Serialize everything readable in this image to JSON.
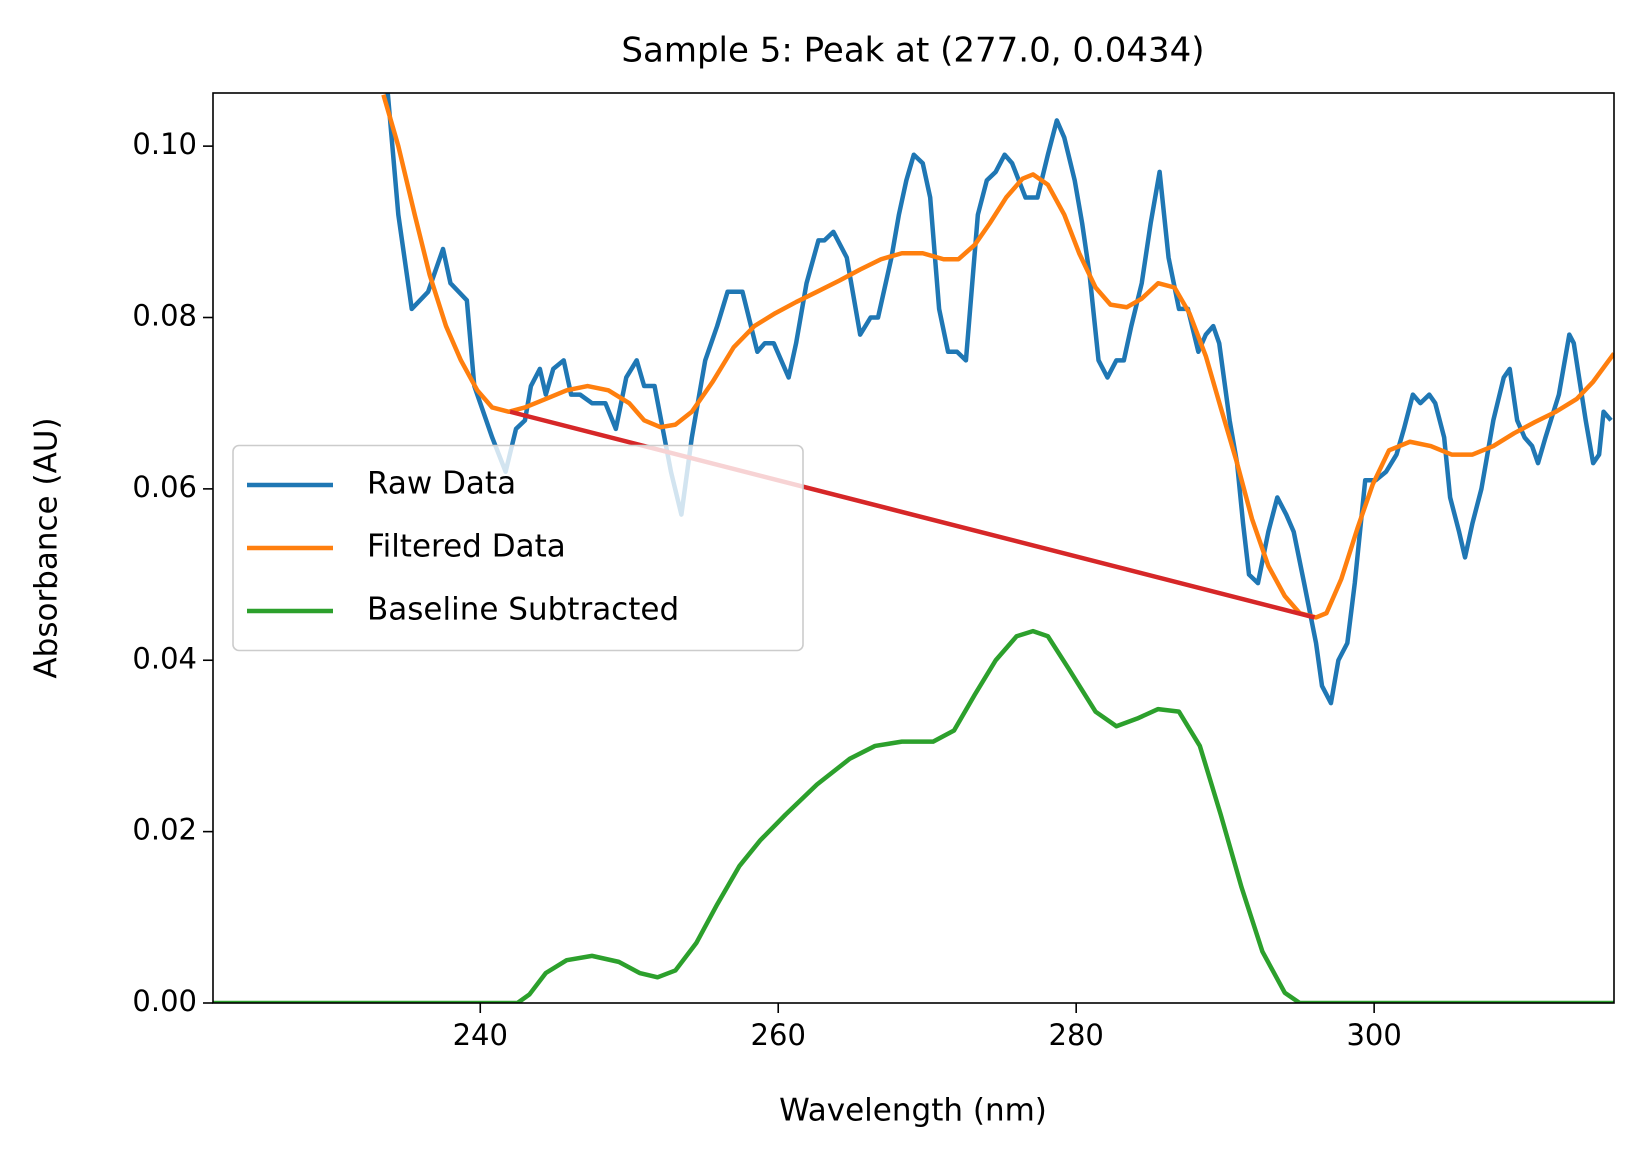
{
  "chart_data": {
    "type": "line",
    "title": "Sample 5: Peak at (277.0, 0.0434)",
    "x_label": "Wavelength (nm)",
    "y_label": "Absorbance (AU)",
    "xlim": [
      222.06,
      316.1
    ],
    "ylim": [
      0,
      0.1062
    ],
    "xticks": [
      240,
      260,
      280,
      300
    ],
    "yticks": [
      {
        "value": 0,
        "label": "0.00"
      },
      0.02,
      0.04,
      0.06,
      0.08,
      {
        "value": 0.1,
        "label": "0.10"
      }
    ],
    "grid": false,
    "legend": "center left",
    "series": [
      {
        "name": "Raw Data",
        "color": "#1f77b4",
        "x": [
          233.2,
          233.8,
          234.5,
          235.4,
          236.5,
          237.5,
          238.0,
          239.1,
          239.6,
          240.8,
          241.7,
          242.4,
          243.0,
          243.4,
          244.0,
          244.4,
          244.9,
          245.6,
          246.1,
          246.7,
          247.5,
          248.4,
          249.1,
          249.8,
          250.5,
          251.0,
          251.7,
          252.8,
          253.5,
          254.2,
          255.1,
          255.9,
          256.6,
          257.6,
          258.6,
          259.1,
          259.7,
          260.7,
          261.2,
          261.9,
          262.7,
          263.1,
          263.7,
          264.6,
          265.5,
          266.2,
          266.7,
          267.6,
          268.1,
          268.6,
          269.1,
          269.7,
          270.2,
          270.8,
          271.4,
          272.0,
          272.6,
          273.4,
          274.0,
          274.6,
          275.2,
          275.7,
          276.6,
          277.4,
          278.1,
          278.7,
          279.2,
          279.9,
          280.4,
          280.9,
          281.5,
          282.1,
          282.7,
          283.2,
          283.7,
          284.4,
          285.0,
          285.6,
          286.2,
          286.9,
          287.5,
          288.2,
          288.7,
          289.2,
          289.6,
          290.3,
          290.8,
          291.2,
          291.6,
          292.2,
          292.9,
          293.5,
          294.1,
          294.6,
          295.3,
          296.1,
          296.5,
          297.1,
          297.6,
          298.2,
          298.7,
          299.4,
          300.1,
          300.8,
          301.5,
          302.0,
          302.6,
          303.1,
          303.7,
          304.1,
          304.7,
          305.1,
          305.7,
          306.1,
          306.6,
          307.2,
          308.0,
          308.7,
          309.1,
          309.6,
          310.1,
          310.6,
          311.0,
          311.5,
          312.4,
          313.1,
          313.4,
          314.2,
          314.7,
          315.1,
          315.4,
          315.9
        ],
        "values": [
          0.112,
          0.106,
          0.092,
          0.081,
          0.083,
          0.088,
          0.084,
          0.082,
          0.072,
          0.066,
          0.062,
          0.067,
          0.068,
          0.072,
          0.074,
          0.071,
          0.074,
          0.075,
          0.071,
          0.071,
          0.07,
          0.07,
          0.067,
          0.073,
          0.075,
          0.072,
          0.072,
          0.062,
          0.057,
          0.066,
          0.075,
          0.079,
          0.083,
          0.083,
          0.076,
          0.077,
          0.077,
          0.073,
          0.077,
          0.084,
          0.089,
          0.089,
          0.09,
          0.087,
          0.078,
          0.08,
          0.08,
          0.087,
          0.092,
          0.096,
          0.099,
          0.098,
          0.094,
          0.081,
          0.076,
          0.076,
          0.075,
          0.092,
          0.096,
          0.097,
          0.099,
          0.098,
          0.094,
          0.094,
          0.099,
          0.103,
          0.101,
          0.096,
          0.091,
          0.085,
          0.075,
          0.073,
          0.075,
          0.075,
          0.079,
          0.084,
          0.091,
          0.097,
          0.087,
          0.081,
          0.081,
          0.076,
          0.078,
          0.079,
          0.077,
          0.068,
          0.063,
          0.056,
          0.05,
          0.049,
          0.055,
          0.059,
          0.057,
          0.055,
          0.049,
          0.042,
          0.037,
          0.035,
          0.04,
          0.042,
          0.049,
          0.061,
          0.061,
          0.062,
          0.064,
          0.067,
          0.071,
          0.07,
          0.071,
          0.07,
          0.066,
          0.059,
          0.055,
          0.052,
          0.056,
          0.06,
          0.068,
          0.073,
          0.074,
          0.068,
          0.066,
          0.065,
          0.063,
          0.066,
          0.071,
          0.078,
          0.077,
          0.068,
          0.063,
          0.064,
          0.069,
          0.068
        ]
      },
      {
        "name": "Filtered Data",
        "color": "#ff7f0e",
        "x": [
          233.5,
          234.5,
          235.6,
          236.6,
          237.7,
          238.7,
          239.8,
          240.8,
          241.9,
          243.0,
          244.4,
          245.8,
          247.2,
          248.6,
          250.0,
          251.0,
          252.1,
          253.1,
          254.2,
          255.6,
          257.0,
          258.4,
          259.8,
          261.2,
          262.6,
          264.1,
          265.5,
          266.9,
          268.3,
          269.7,
          271.1,
          272.1,
          273.2,
          274.2,
          275.3,
          276.4,
          277.1,
          278.1,
          279.2,
          280.2,
          281.3,
          282.3,
          283.4,
          284.4,
          285.5,
          286.6,
          287.6,
          288.7,
          289.7,
          290.8,
          291.8,
          292.9,
          294.0,
          295.0,
          296.1,
          296.8,
          297.8,
          298.9,
          299.9,
          301.0,
          302.4,
          303.8,
          305.2,
          306.6,
          308.0,
          309.4,
          310.8,
          312.2,
          313.6,
          314.7,
          316.1
        ],
        "values": [
          0.106,
          0.1,
          0.092,
          0.085,
          0.079,
          0.075,
          0.0715,
          0.0695,
          0.069,
          0.0695,
          0.0705,
          0.0715,
          0.072,
          0.0715,
          0.07,
          0.068,
          0.0672,
          0.0675,
          0.069,
          0.0725,
          0.0765,
          0.079,
          0.0805,
          0.0818,
          0.083,
          0.0843,
          0.0856,
          0.0868,
          0.0875,
          0.0875,
          0.0868,
          0.0868,
          0.0885,
          0.091,
          0.094,
          0.0962,
          0.0967,
          0.0955,
          0.092,
          0.0875,
          0.0835,
          0.0815,
          0.0812,
          0.0822,
          0.084,
          0.0835,
          0.0805,
          0.0755,
          0.0695,
          0.063,
          0.0565,
          0.051,
          0.0475,
          0.0455,
          0.045,
          0.0455,
          0.0495,
          0.0555,
          0.0605,
          0.0645,
          0.0655,
          0.065,
          0.064,
          0.064,
          0.065,
          0.0665,
          0.0678,
          0.069,
          0.0705,
          0.0725,
          0.0758
        ]
      },
      {
        "name": "Baseline Subtracted",
        "color": "#2ca02c",
        "x": [
          222.06,
          242.5,
          243.3,
          244.4,
          245.8,
          247.5,
          249.3,
          250.7,
          251.9,
          253.1,
          254.5,
          255.9,
          257.4,
          258.8,
          260.5,
          262.6,
          264.8,
          266.5,
          268.3,
          270.4,
          271.8,
          273.2,
          274.6,
          276.0,
          277.1,
          278.1,
          279.5,
          281.3,
          282.7,
          284.1,
          285.5,
          286.9,
          288.3,
          289.7,
          291.1,
          292.5,
          294.0,
          295.0,
          316.1
        ],
        "values": [
          0,
          0,
          0.001,
          0.0035,
          0.005,
          0.0055,
          0.0048,
          0.0035,
          0.003,
          0.0038,
          0.007,
          0.0115,
          0.016,
          0.019,
          0.022,
          0.0255,
          0.0285,
          0.03,
          0.0305,
          0.0305,
          0.0318,
          0.036,
          0.04,
          0.0428,
          0.0434,
          0.0428,
          0.039,
          0.034,
          0.0323,
          0.0332,
          0.0343,
          0.034,
          0.03,
          0.022,
          0.0135,
          0.006,
          0.0012,
          0,
          0
        ]
      },
      {
        "color": "#d62728",
        "x": [
          242,
          296
        ],
        "values": [
          0.069,
          0.045
        ]
      }
    ]
  }
}
